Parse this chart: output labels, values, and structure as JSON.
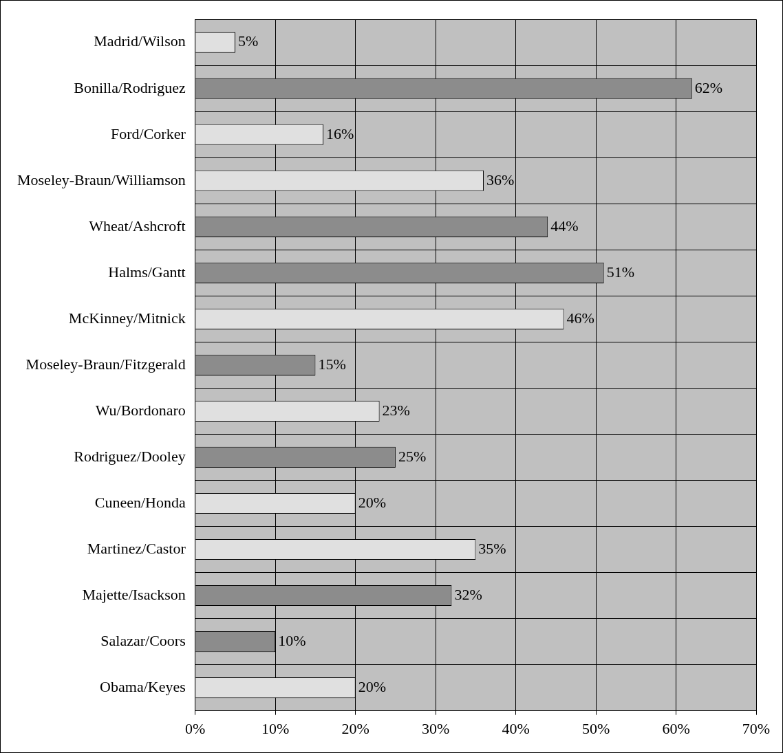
{
  "chart_data": {
    "type": "bar",
    "orientation": "horizontal",
    "categories": [
      "Madrid/Wilson",
      "Bonilla/Rodriguez",
      "Ford/Corker",
      "Moseley-Braun/Williamson",
      "Wheat/Ashcroft",
      "Halms/Gantt",
      "McKinney/Mitnick",
      "Moseley-Braun/Fitzgerald",
      "Wu/Bordonaro",
      "Rodriguez/Dooley",
      "Cuneen/Honda",
      "Martinez/Castor",
      "Majette/Isackson",
      "Salazar/Coors",
      "Obama/Keyes"
    ],
    "values": [
      5,
      62,
      16,
      36,
      44,
      51,
      46,
      15,
      23,
      25,
      20,
      35,
      32,
      10,
      20
    ],
    "colors": [
      "#e0e0e0",
      "#8c8c8c",
      "#e0e0e0",
      "#e0e0e0",
      "#8c8c8c",
      "#8c8c8c",
      "#e0e0e0",
      "#8c8c8c",
      "#e0e0e0",
      "#8c8c8c",
      "#e0e0e0",
      "#e0e0e0",
      "#8c8c8c",
      "#8c8c8c",
      "#e0e0e0"
    ],
    "value_labels": [
      "5%",
      "62%",
      "16%",
      "36%",
      "44%",
      "51%",
      "46%",
      "15%",
      "23%",
      "25%",
      "20%",
      "35%",
      "32%",
      "10%",
      "20%"
    ],
    "xlim": [
      0,
      70
    ],
    "xticks": [
      {
        "value": 0,
        "label": "0%"
      },
      {
        "value": 10,
        "label": "10%"
      },
      {
        "value": 20,
        "label": "20%"
      },
      {
        "value": 30,
        "label": "30%"
      },
      {
        "value": 40,
        "label": "40%"
      },
      {
        "value": 50,
        "label": "50%"
      },
      {
        "value": 60,
        "label": "60%"
      },
      {
        "value": 70,
        "label": "70%"
      }
    ],
    "grid": true,
    "legend": false
  }
}
